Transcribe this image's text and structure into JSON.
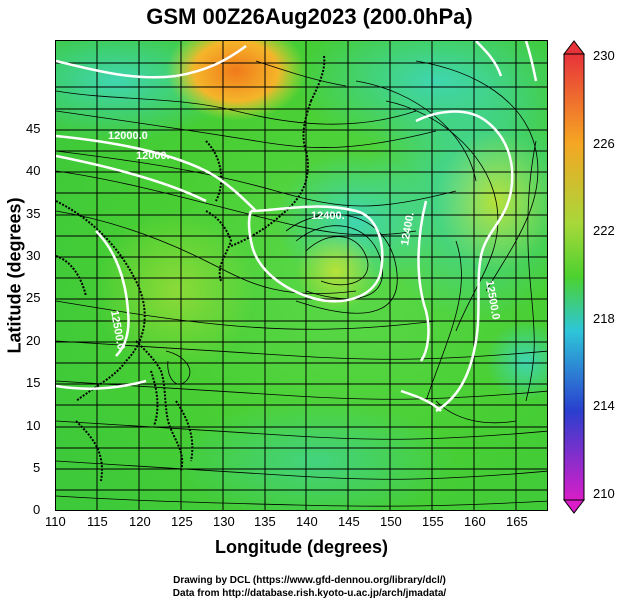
{
  "title": "GSM 00Z26Aug2023 (200.0hPa)",
  "map": {
    "x_axis_label": "Longitude (degrees)",
    "y_axis_label": "Latitude  (degrees)",
    "x_ticks": [
      "110",
      "115",
      "120",
      "125",
      "130",
      "135",
      "140",
      "145",
      "150",
      "155",
      "160",
      "165"
    ],
    "y_ticks": [
      "0",
      "5",
      "10",
      "15",
      "20",
      "25",
      "30",
      "35",
      "40",
      "45"
    ],
    "lon_range": [
      110,
      169
    ],
    "lat_range": [
      0,
      50
    ],
    "contour_labels": [
      "12000.0",
      "12000.",
      "12400.",
      "12400.",
      "12500.0",
      "12500.0"
    ]
  },
  "colorbar": {
    "ticks": [
      "230",
      "226",
      "222",
      "218",
      "214",
      "210"
    ],
    "colors": [
      "#e8333a",
      "#f5a623",
      "#4cd12f",
      "#2ec6d8",
      "#2a3fcf",
      "#d91ec8"
    ]
  },
  "credits": {
    "line1": "Drawing by DCL (https://www.gfd-dennou.org/library/dcl/)",
    "line2": "Data from http://database.rish.kyoto-u.ac.jp/arch/jmadata/"
  }
}
